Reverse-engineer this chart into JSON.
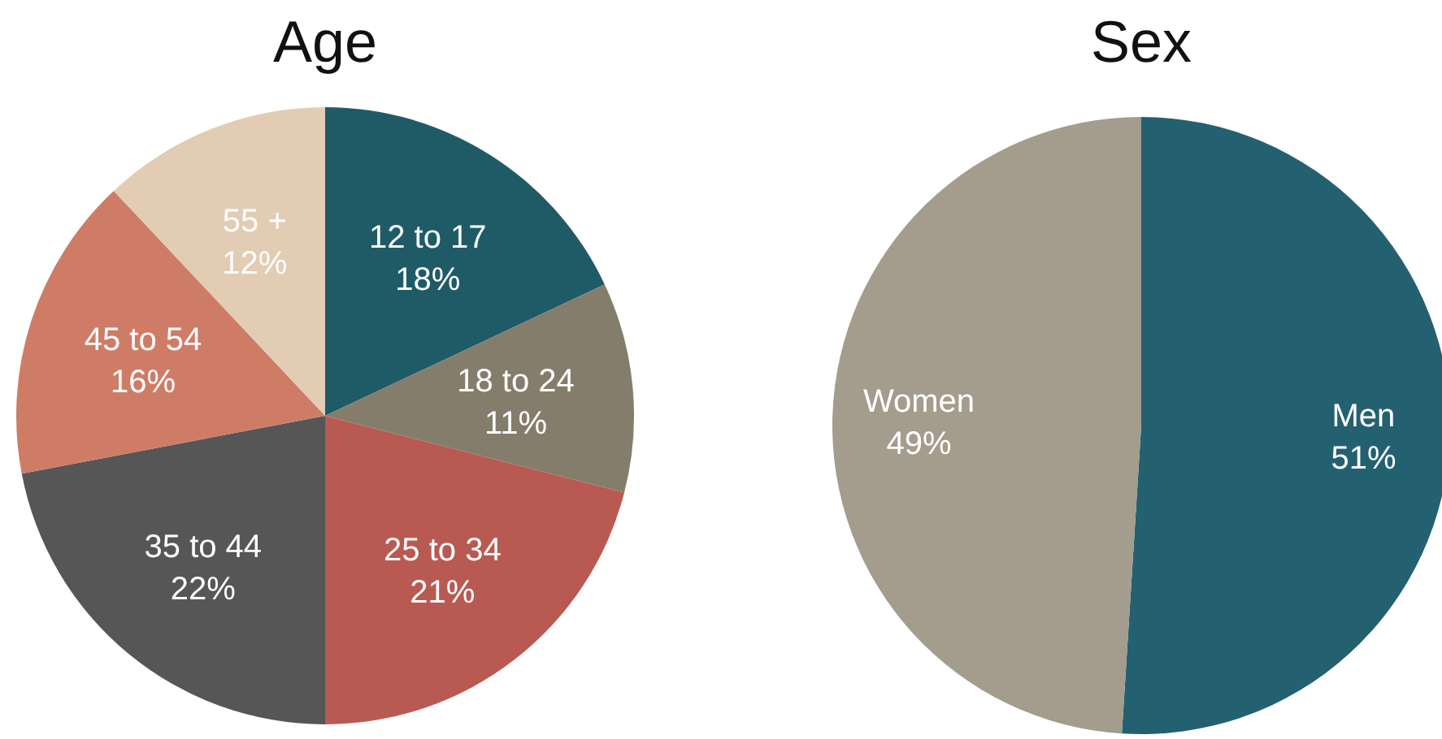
{
  "chart_data": [
    {
      "type": "pie",
      "title": "Age",
      "categories": [
        "12 to 17",
        "18 to 24",
        "25 to 34",
        "35 to 44",
        "45 to 54",
        "55 +"
      ],
      "values": [
        18,
        11,
        21,
        22,
        16,
        12
      ],
      "colors": [
        "#1f5b67",
        "#857d6c",
        "#b95a52",
        "#565656",
        "#cf7c67",
        "#e2ccb3"
      ],
      "value_labels": [
        "18%",
        "11%",
        "21%",
        "22%",
        "16%",
        "12%"
      ]
    },
    {
      "type": "pie",
      "title": "Sex",
      "categories": [
        "Men",
        "Women"
      ],
      "values": [
        51,
        49
      ],
      "colors": [
        "#246170",
        "#a49c8c"
      ],
      "value_labels": [
        "51%",
        "49%"
      ]
    }
  ]
}
